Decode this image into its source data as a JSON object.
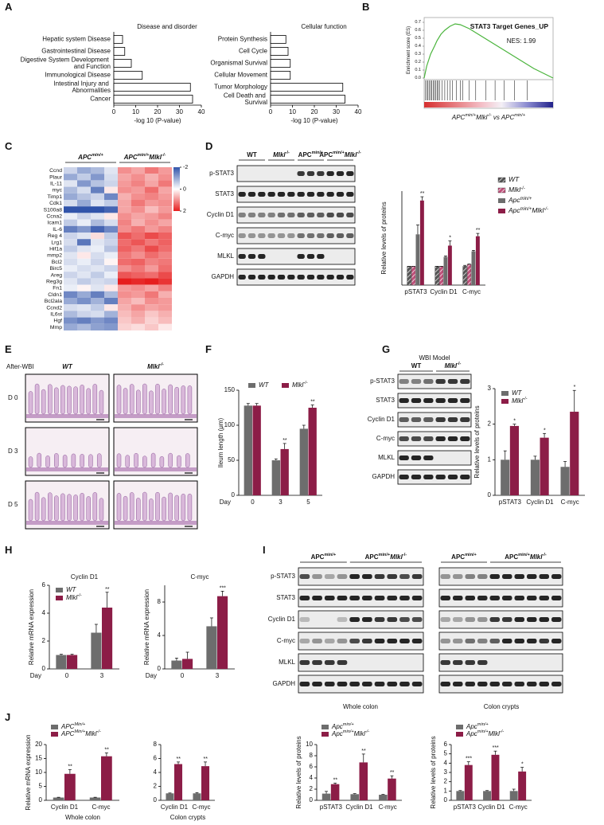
{
  "panel_labels": [
    "A",
    "B",
    "C",
    "D",
    "E",
    "F",
    "G",
    "H",
    "I",
    "J"
  ],
  "chart_data": [
    {
      "type": "bar",
      "orientation": "horizontal",
      "title": "Disease and disorder",
      "categories": [
        "Hepatic system Disease",
        "Gastrointestinal Disease",
        "Digestive System Development and Function",
        "Immunological Disease",
        "Intestinal Injury and Abnormalities",
        "Cancer"
      ],
      "values": [
        4,
        5,
        8,
        13,
        35,
        36
      ],
      "color": "#ffffff",
      "xlim": [
        0,
        40
      ],
      "xticks": [
        0,
        10,
        20,
        30,
        40
      ],
      "xlabel": "-log 10 (P-value)"
    },
    {
      "type": "bar",
      "orientation": "horizontal",
      "title": "Cellular function",
      "categories": [
        "Protein Synthesis",
        "Cell Cycle",
        "Organismal Survival",
        "Cellular Movement",
        "Tumor Morphology",
        "Cell Death and Survival"
      ],
      "values": [
        7,
        8,
        9,
        9,
        33,
        34
      ],
      "color": "#ffffff",
      "xlim": [
        0,
        40
      ],
      "xticks": [
        0,
        10,
        20,
        30,
        40
      ],
      "xlabel": "-log 10 (P-value)"
    },
    {
      "type": "line",
      "title": "STAT3 Target Genes_UP",
      "annotation": "NES: 1.99",
      "ylabel": "Enrichment score (ES)",
      "xlabel": "APCmin/+Mlkl-/- vs APCmin/+",
      "x": [
        0,
        2,
        5,
        8,
        10,
        13,
        16,
        20,
        24,
        28,
        35,
        45,
        55,
        65,
        75,
        85,
        95,
        100
      ],
      "values": [
        0,
        0.15,
        0.3,
        0.4,
        0.47,
        0.55,
        0.6,
        0.65,
        0.68,
        0.67,
        0.62,
        0.52,
        0.42,
        0.32,
        0.22,
        0.12,
        0.04,
        0
      ],
      "hits": [
        1,
        2,
        3,
        4,
        5,
        6,
        7,
        8,
        9,
        10,
        11,
        12,
        14,
        16,
        18,
        20,
        22,
        25,
        28,
        30,
        35,
        40,
        48,
        55,
        62,
        70,
        80
      ],
      "color": "#4ab43c",
      "xlim": [
        0,
        100
      ],
      "ylim": [
        0,
        0.7
      ],
      "yticks": [
        {
          "value": 0,
          "label": "0.0"
        },
        0.1,
        0.2,
        0.3,
        0.4,
        0.5,
        0.6,
        0.7
      ]
    },
    {
      "type": "bar",
      "ylabel": "Relative levels of proteins",
      "categories": [
        "pSTAT3",
        "Cyclin D1",
        "C-myc"
      ],
      "ylim": [
        0,
        5
      ],
      "legend": "right",
      "series": [
        {
          "name": "WT",
          "color": "#555555",
          "pattern": true,
          "values": [
            1,
            1,
            1
          ],
          "errors": [
            0,
            0,
            0.05
          ]
        },
        {
          "name": "Mlkl-/-",
          "color": "#c0507a",
          "pattern": true,
          "values": [
            1,
            1,
            1.1
          ],
          "errors": [
            0,
            0,
            0.02
          ]
        },
        {
          "name": "Apcmin/+",
          "color": "#6d6d6d",
          "values": [
            2.7,
            1.5,
            1.8
          ],
          "errors": [
            0.5,
            0.05,
            0.05
          ]
        },
        {
          "name": "Apcmin/+Mlkl-/-",
          "color": "#8c1d47",
          "values": [
            4.5,
            2.1,
            2.6
          ],
          "errors": [
            0.2,
            0.25,
            0.15
          ]
        }
      ],
      "significance": [
        "**",
        "*",
        "**"
      ]
    },
    {
      "type": "bar",
      "ylabel": "Ileum length (μm)",
      "xlabel": "Day",
      "categories": [
        "0",
        "3",
        "5"
      ],
      "ylim": [
        0,
        150
      ],
      "yticks": [
        0,
        50,
        100,
        150
      ],
      "legend": "top",
      "series": [
        {
          "name": "WT",
          "color": "#6d6d6d",
          "values": [
            128,
            50,
            95
          ],
          "errors": [
            3,
            2,
            5
          ]
        },
        {
          "name": "Mlkl-/-",
          "color": "#8c1d47",
          "values": [
            128,
            66,
            125
          ],
          "errors": [
            3,
            8,
            4
          ]
        }
      ],
      "significance": [
        null,
        "**",
        "**"
      ]
    },
    {
      "type": "bar",
      "ylabel": "Relative levels of proteins",
      "categories": [
        "pSTAT3",
        "Cyclin D1",
        "C-myc"
      ],
      "ylim": [
        0,
        3
      ],
      "yticks": [
        0,
        1,
        2,
        3
      ],
      "legend": "upper left",
      "series": [
        {
          "name": "WT",
          "color": "#6d6d6d",
          "values": [
            1.0,
            1.0,
            0.8
          ],
          "errors": [
            0.25,
            0.1,
            0.15
          ]
        },
        {
          "name": "Mlkl-/-",
          "color": "#8c1d47",
          "values": [
            1.95,
            1.62,
            2.35
          ],
          "errors": [
            0.05,
            0.12,
            0.6
          ]
        }
      ],
      "significance": [
        "*",
        "*",
        "*"
      ]
    },
    {
      "type": "bar",
      "title": "Cyclin D1",
      "ylabel": "Relative mRNA expression",
      "xlabel": "Day",
      "categories": [
        "0",
        "3"
      ],
      "ylim": [
        0,
        6
      ],
      "yticks": [
        0,
        2,
        4,
        6
      ],
      "legend": "upper left",
      "series": [
        {
          "name": "WT",
          "color": "#6d6d6d",
          "values": [
            1,
            2.6
          ],
          "errors": [
            0.05,
            0.6
          ]
        },
        {
          "name": "Mlkl-/-",
          "color": "#8c1d47",
          "values": [
            1,
            4.4
          ],
          "errors": [
            0.05,
            1.1
          ]
        }
      ],
      "significance": [
        null,
        "**"
      ]
    },
    {
      "type": "bar",
      "title": "C-myc",
      "ylabel": "Relative mRNA expression",
      "xlabel": "Day",
      "categories": [
        "0",
        "3"
      ],
      "ylim": [
        0,
        10
      ],
      "yticks": [
        0,
        4,
        8
      ],
      "series": [
        {
          "color": "#6d6d6d",
          "values": [
            1,
            5.1
          ],
          "errors": [
            0.3,
            1
          ]
        },
        {
          "color": "#8c1d47",
          "values": [
            1.2,
            8.7
          ],
          "errors": [
            0.8,
            0.6
          ]
        }
      ],
      "significance": [
        null,
        "***"
      ]
    },
    {
      "type": "bar",
      "ylabel": "Relative mRNA expression",
      "xlabel": "Whole colon",
      "categories": [
        "Cyclin D1",
        "C-myc"
      ],
      "ylim": [
        0,
        20
      ],
      "yticks": [
        0,
        5,
        10,
        15,
        20
      ],
      "legend": "above",
      "series": [
        {
          "name": "APCMin/+",
          "color": "#6d6d6d",
          "values": [
            1,
            1
          ],
          "errors": [
            0.1,
            0.1
          ]
        },
        {
          "name": "APCMin/+Mlkl-/-",
          "color": "#8c1d47",
          "values": [
            9.5,
            15.8
          ],
          "errors": [
            1.5,
            1.2
          ]
        }
      ],
      "significance": [
        "**",
        "**"
      ]
    },
    {
      "type": "bar",
      "xlabel": "Colon crypts",
      "categories": [
        "Cyclin D1",
        "C-myc"
      ],
      "ylim": [
        0,
        8
      ],
      "yticks": [
        0,
        2,
        4,
        6,
        8
      ],
      "series": [
        {
          "color": "#6d6d6d",
          "values": [
            1,
            1
          ],
          "errors": [
            0.05,
            0.1
          ]
        },
        {
          "color": "#8c1d47",
          "values": [
            5.2,
            4.9
          ],
          "errors": [
            0.3,
            0.6
          ]
        }
      ],
      "significance": [
        "**",
        "**"
      ]
    },
    {
      "type": "bar",
      "ylabel": "Relative levels of proteins",
      "categories": [
        "pSTAT3",
        "Cyclin D1",
        "C-myc"
      ],
      "ylim": [
        0,
        10
      ],
      "yticks": [
        0,
        2,
        4,
        6,
        8,
        10
      ],
      "legend": "above",
      "series": [
        {
          "name": "Apcmin/+",
          "color": "#6d6d6d",
          "values": [
            1.2,
            1.1,
            1.0
          ],
          "errors": [
            0.4,
            0.1,
            0.05
          ]
        },
        {
          "name": "Apcmin/+Mlkl-/-",
          "color": "#8c1d47",
          "values": [
            2.9,
            6.8,
            3.9
          ],
          "errors": [
            0.2,
            1.5,
            0.5
          ]
        }
      ],
      "significance": [
        "**",
        "**",
        "**"
      ]
    },
    {
      "type": "bar",
      "ylabel": "Relative levels of proteins",
      "categories": [
        "pSTAT3",
        "Cyclin D1",
        "C-myc"
      ],
      "ylim": [
        0,
        6
      ],
      "yticks": [
        0,
        1,
        2,
        3,
        4,
        5,
        6
      ],
      "legend": "above",
      "series": [
        {
          "name": "Apcmin/+",
          "color": "#6d6d6d",
          "values": [
            1.0,
            1.0,
            1.0
          ],
          "errors": [
            0.05,
            0.05,
            0.2
          ]
        },
        {
          "name": "Apcmin/+Mlkl-/-",
          "color": "#8c1d47",
          "values": [
            3.8,
            4.9,
            3.1
          ],
          "errors": [
            0.35,
            0.4,
            0.45
          ]
        }
      ],
      "significance": [
        "***",
        "***",
        "*"
      ]
    }
  ],
  "heatmap": {
    "genes": [
      "Ccnd",
      "Plaur",
      "IL-11",
      "myc",
      "Timp1",
      "Cdk1",
      "S100a8",
      "Ccna2",
      "Icam1",
      "IL-6",
      "Reg 4",
      "Lrg1",
      "Hif1a",
      "mmp2",
      "Bcl2",
      "Birc5",
      "Areg",
      "Reg3g",
      "Fn1",
      "Cldn1",
      "Bcl2ala",
      "Ccnd2",
      "IL6st",
      "Hgf",
      "Mmp"
    ],
    "groups": [
      {
        "name": "APCmin/+",
        "values": [
          [
            -0.5,
            -1,
            -0.8,
            -0.3
          ],
          [
            -1,
            -0.6,
            -1.2,
            -0.4
          ],
          [
            -0.3,
            -1.2,
            -0.7,
            -0.5
          ],
          [
            -0.8,
            -0.4,
            -1.5,
            0.2
          ],
          [
            -1,
            -0.7,
            -0.5,
            -1.4
          ],
          [
            -0.4,
            -1,
            -0.3,
            -0.6
          ],
          [
            -2,
            -2,
            -2,
            -1.8
          ],
          [
            -0.2,
            -0.5,
            -0.3,
            0.2
          ],
          [
            -0.6,
            -0.2,
            -0.8,
            -0.4
          ],
          [
            -1.5,
            -1.2,
            -1.8,
            -1.4
          ],
          [
            -0.5,
            -0.3,
            0.3,
            -0.6
          ],
          [
            -0.4,
            -1.6,
            -0.3,
            -0.5
          ],
          [
            -0.6,
            -0.3,
            -0.2,
            -0.7
          ],
          [
            -0.3,
            0.2,
            -0.4,
            -0.2
          ],
          [
            -0.4,
            -0.2,
            -0.5,
            0.1
          ],
          [
            -0.2,
            -0.4,
            -0.3,
            -0.5
          ],
          [
            -0.5,
            -0.3,
            -0.6,
            -0.2
          ],
          [
            -0.3,
            -0.6,
            -0.4,
            -0.5
          ],
          [
            -0.2,
            0.1,
            -0.3,
            0.2
          ],
          [
            -1.4,
            -1,
            -1.5,
            -0.8
          ],
          [
            -1,
            -1.3,
            -0.9,
            -1.5
          ],
          [
            -0.4,
            -0.3,
            -0.6,
            0.2
          ],
          [
            -0.8,
            -0.5,
            -0.4,
            -0.9
          ],
          [
            -1.3,
            -1.5,
            -1.2,
            -1.4
          ],
          [
            -1,
            -0.8,
            -1.1,
            -1.2
          ]
        ]
      },
      {
        "name": "APCmin/+Mlkl-/-",
        "values": [
          [
            1,
            0.8,
            1.2,
            0.9
          ],
          [
            0.8,
            1,
            0.7,
            1
          ],
          [
            0.9,
            1.1,
            0.8,
            1.2
          ],
          [
            1,
            0.9,
            1.3,
            0.8
          ],
          [
            0.7,
            1,
            1.1,
            0.9
          ],
          [
            0.8,
            1.2,
            0.9,
            1
          ],
          [
            0.8,
            1,
            0.6,
            0.9
          ],
          [
            1,
            0.8,
            0.9,
            1.1
          ],
          [
            1.1,
            0.7,
            1,
            0.8
          ],
          [
            1,
            1.2,
            0.9,
            1.1
          ],
          [
            1.5,
            1.3,
            1.6,
            1.4
          ],
          [
            1.3,
            1.5,
            1.2,
            1.4
          ],
          [
            1.4,
            1.2,
            1.6,
            1.3
          ],
          [
            1.2,
            1,
            1.3,
            1.1
          ],
          [
            1.3,
            1.4,
            1.1,
            1.2
          ],
          [
            1,
            1.2,
            0.9,
            1.3
          ],
          [
            1.5,
            1.4,
            1.3,
            1.6
          ],
          [
            2,
            1.9,
            2,
            1.8
          ],
          [
            0.9,
            1,
            0.8,
            1.1
          ],
          [
            1,
            0.9,
            1.2,
            0.7
          ],
          [
            0.8,
            0.6,
            1,
            0.9
          ],
          [
            0.7,
            1,
            0.8,
            0.9
          ],
          [
            0.6,
            0.8,
            0.5,
            0.7
          ],
          [
            0.5,
            0.7,
            0.4,
            0.6
          ],
          [
            0.4,
            0.3,
            0.5,
            0.2
          ]
        ]
      }
    ],
    "colorbar_range": [
      -2,
      2
    ],
    "colorbar_ticks": [
      -2,
      0,
      2
    ]
  },
  "blots": [
    {
      "header": [
        "WT",
        "Mlkl-/-",
        "APCmin/+",
        "APCmin/+Mlkl-/-"
      ],
      "rows": [
        "p-STAT3",
        "STAT3",
        "Cyclin D1",
        "C-myc",
        "MLKL",
        "GAPDH"
      ]
    },
    {
      "title": "WBI Model",
      "header": [
        "WT",
        "Mlkl-/-"
      ],
      "rows": [
        "p-STAT3",
        "STAT3",
        "Cyclin D1",
        "C-myc",
        "MLKL",
        "GAPDH"
      ]
    },
    {
      "sections": [
        {
          "header": [
            "APCmin/+",
            "APCmin/+Mlkl-/-"
          ],
          "caption": "Whole colon"
        },
        {
          "header": [
            "APCmin/+",
            "APCmin/+Mlkl-/-"
          ],
          "caption": "Colon crypts"
        }
      ],
      "rows": [
        "p-STAT3",
        "STAT3",
        "Cyclin D1",
        "C-myc",
        "MLKL",
        "GAPDH"
      ]
    }
  ],
  "histology": {
    "title": "After-WBI",
    "columns": [
      "WT",
      "Mlkl-/-"
    ],
    "rows": [
      "D 0",
      "D 3",
      "D 5"
    ]
  }
}
